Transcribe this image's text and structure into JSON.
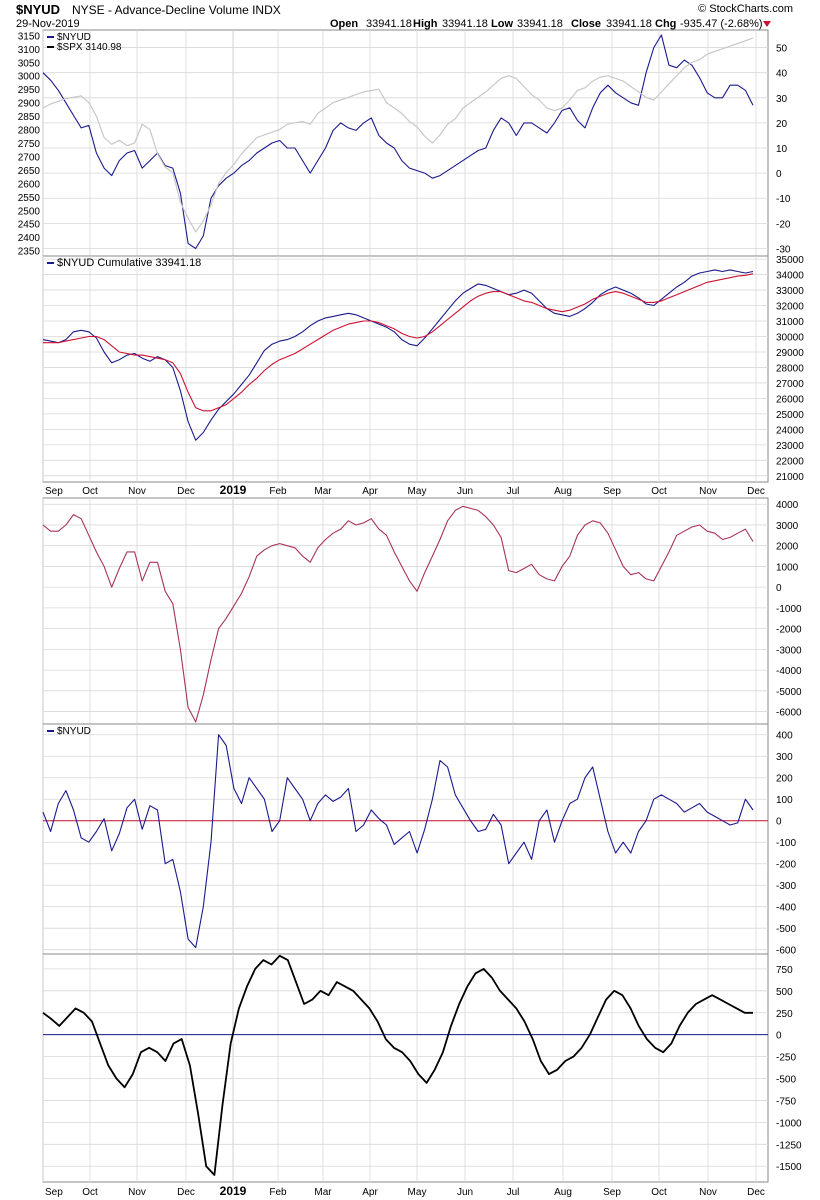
{
  "header": {
    "symbol": "$NYUD",
    "name": "NYSE - Advance-Decline Volume INDX",
    "date": "29-Nov-2019",
    "brand": "© StockCharts.com",
    "open_label": "Open",
    "open": "33941.18",
    "high_label": "High",
    "high": "33941.18",
    "low_label": "Low",
    "low": "33941.18",
    "close_label": "Close",
    "close": "33941.18",
    "chg_label": "Chg",
    "chg": "-935.47 (-2.68%)"
  },
  "colors": {
    "navy": "#1a1a8c",
    "red": "#cc1133",
    "maroon": "#a8325a",
    "gray_line": "#c8c8c8",
    "grid": "#d8d8d8",
    "black": "#000000"
  },
  "chart_data": [
    {
      "type": "line",
      "panel": "price",
      "legend": [
        "$NYUD",
        "$SPX 3140.98"
      ],
      "x_labels": [
        "Sep",
        "Oct",
        "Nov",
        "Dec",
        "2019",
        "Feb",
        "Mar",
        "Apr",
        "May",
        "Jun",
        "Jul",
        "Aug",
        "Sep",
        "Oct",
        "Nov",
        "Dec"
      ],
      "y_left_ticks": [
        2350,
        2400,
        2450,
        2500,
        2550,
        2600,
        2650,
        2700,
        2750,
        2800,
        2850,
        2900,
        2950,
        3000,
        3050,
        3100,
        3150
      ],
      "y_right_ticks": [
        -30,
        -20,
        -10,
        0,
        10,
        20,
        30,
        40,
        50
      ],
      "series": [
        {
          "name": "$NYUD",
          "axis": "right",
          "color": "navy",
          "values": [
            40,
            37,
            33,
            28,
            23,
            18,
            19,
            8,
            2,
            -1,
            5,
            8,
            9,
            2,
            5,
            8,
            3,
            2,
            -8,
            -28,
            -30,
            -25,
            -10,
            -5,
            -2,
            0,
            3,
            5,
            8,
            10,
            12,
            13,
            10,
            10,
            5,
            0,
            5,
            10,
            17,
            20,
            18,
            17,
            20,
            22,
            15,
            12,
            10,
            5,
            2,
            1,
            0,
            -2,
            -1,
            1,
            3,
            5,
            7,
            9,
            10,
            17,
            22,
            20,
            15,
            20,
            20,
            18,
            16,
            20,
            25,
            26,
            21,
            18,
            26,
            32,
            35,
            32,
            30,
            28,
            27,
            40,
            50,
            55,
            43,
            42,
            45,
            43,
            38,
            32,
            30,
            30,
            35,
            35,
            33,
            27
          ]
        },
        {
          "name": "$SPX 3140.98",
          "axis": "left",
          "color": "gray_line",
          "values": [
            2880,
            2895,
            2905,
            2915,
            2920,
            2925,
            2900,
            2850,
            2770,
            2745,
            2760,
            2740,
            2750,
            2820,
            2800,
            2710,
            2660,
            2640,
            2530,
            2470,
            2420,
            2460,
            2520,
            2600,
            2640,
            2670,
            2710,
            2740,
            2770,
            2780,
            2790,
            2800,
            2820,
            2825,
            2830,
            2820,
            2860,
            2880,
            2900,
            2910,
            2920,
            2930,
            2940,
            2945,
            2950,
            2900,
            2880,
            2860,
            2830,
            2810,
            2775,
            2750,
            2780,
            2820,
            2840,
            2880,
            2900,
            2920,
            2940,
            2965,
            2990,
            3000,
            2990,
            2960,
            2930,
            2910,
            2880,
            2870,
            2880,
            2910,
            2945,
            2955,
            2980,
            2995,
            3000,
            2990,
            2980,
            2960,
            2940,
            2920,
            2910,
            2940,
            2970,
            3000,
            3030,
            3050,
            3060,
            3080,
            3090,
            3100,
            3110,
            3120,
            3130,
            3140
          ]
        }
      ]
    },
    {
      "type": "line",
      "panel": "cumulative",
      "legend": [
        "$NYUD Cumulative 33941.18"
      ],
      "y_right_ticks": [
        21000,
        22000,
        23000,
        24000,
        25000,
        26000,
        27000,
        28000,
        29000,
        30000,
        31000,
        32000,
        33000,
        34000,
        35000
      ],
      "series": [
        {
          "name": "$NYUD Cumulative 33941.18",
          "color": "navy",
          "values": [
            29800,
            29700,
            29600,
            29800,
            30300,
            30400,
            30300,
            29900,
            29000,
            28300,
            28500,
            28800,
            28900,
            28600,
            28400,
            28700,
            28500,
            28000,
            26500,
            24500,
            23300,
            23800,
            24600,
            25300,
            25800,
            26300,
            26900,
            27500,
            28300,
            29100,
            29500,
            29700,
            29800,
            30000,
            30300,
            30700,
            31000,
            31200,
            31300,
            31400,
            31500,
            31400,
            31200,
            31000,
            30800,
            30600,
            30300,
            29800,
            29500,
            29400,
            29900,
            30500,
            31100,
            31700,
            32300,
            32800,
            33100,
            33400,
            33300,
            33100,
            32900,
            32700,
            32800,
            33000,
            32800,
            32300,
            31800,
            31500,
            31400,
            31300,
            31500,
            31800,
            32200,
            32700,
            33000,
            33200,
            33000,
            32800,
            32500,
            32100,
            32000,
            32400,
            32800,
            33200,
            33500,
            33900,
            34100,
            34200,
            34300,
            34200,
            34300,
            34200,
            34100,
            34200
          ]
        },
        {
          "name": "Moving Average",
          "color": "red",
          "values": [
            29600,
            29600,
            29600,
            29700,
            29800,
            29900,
            30000,
            30000,
            29800,
            29400,
            29000,
            28900,
            28800,
            28800,
            28700,
            28600,
            28500,
            28300,
            27600,
            26400,
            25400,
            25200,
            25200,
            25400,
            25600,
            26000,
            26400,
            26900,
            27300,
            27800,
            28200,
            28500,
            28700,
            28900,
            29200,
            29500,
            29800,
            30100,
            30400,
            30600,
            30800,
            30900,
            31000,
            31000,
            30900,
            30700,
            30500,
            30200,
            30000,
            29900,
            30000,
            30300,
            30700,
            31100,
            31500,
            31900,
            32300,
            32600,
            32800,
            32900,
            32900,
            32700,
            32500,
            32300,
            32200,
            32000,
            31800,
            31700,
            31600,
            31700,
            31900,
            32100,
            32400,
            32600,
            32800,
            32900,
            32800,
            32600,
            32400,
            32200,
            32200,
            32300,
            32500,
            32700,
            32900,
            33100,
            33300,
            33500,
            33600,
            33700,
            33800,
            33900,
            33950,
            34050
          ]
        }
      ]
    },
    {
      "type": "line",
      "panel": "cumulative-oscillator",
      "y_right_ticks": [
        -6000,
        -5000,
        -4000,
        -3000,
        -2000,
        -1000,
        0,
        1000,
        2000,
        3000,
        4000
      ],
      "series": [
        {
          "name": "Oscillator",
          "color": "maroon",
          "values": [
            3000,
            2700,
            2700,
            3000,
            3500,
            3300,
            2500,
            1700,
            1000,
            0,
            900,
            1700,
            1700,
            300,
            1200,
            1200,
            -200,
            -800,
            -3000,
            -5800,
            -6500,
            -5200,
            -3500,
            -2000,
            -1500,
            -900,
            -300,
            500,
            1500,
            1800,
            2000,
            2100,
            2000,
            1900,
            1500,
            1200,
            1900,
            2300,
            2600,
            2800,
            3200,
            3000,
            3100,
            3300,
            2800,
            2500,
            1700,
            1000,
            300,
            -200,
            700,
            1500,
            2300,
            3200,
            3700,
            3900,
            3800,
            3700,
            3400,
            3000,
            2400,
            800,
            700,
            900,
            1100,
            600,
            400,
            300,
            1000,
            1500,
            2500,
            3000,
            3200,
            3100,
            2600,
            1800,
            1000,
            600,
            700,
            400,
            300,
            1000,
            1700,
            2500,
            2700,
            2900,
            3000,
            2700,
            2600,
            2300,
            2400,
            2600,
            2800,
            2200
          ]
        }
      ]
    },
    {
      "type": "line",
      "panel": "nyud",
      "legend": [
        "$NYUD"
      ],
      "y_right_ticks": [
        -600,
        -500,
        -400,
        -300,
        -200,
        -100,
        0,
        100,
        200,
        300,
        400
      ],
      "reference_line": 0,
      "series": [
        {
          "name": "$NYUD",
          "color": "navy",
          "values": [
            40,
            -50,
            80,
            140,
            50,
            -80,
            -100,
            -50,
            10,
            -140,
            -60,
            60,
            100,
            -40,
            70,
            50,
            -200,
            -180,
            -330,
            -550,
            -590,
            -400,
            -100,
            400,
            350,
            150,
            80,
            200,
            150,
            100,
            -50,
            0,
            200,
            150,
            100,
            0,
            80,
            120,
            90,
            110,
            150,
            -50,
            -20,
            50,
            10,
            -20,
            -110,
            -80,
            -50,
            -150,
            -40,
            100,
            280,
            250,
            120,
            60,
            0,
            -50,
            -40,
            30,
            -20,
            -200,
            -150,
            -100,
            -180,
            0,
            50,
            -100,
            0,
            80,
            100,
            200,
            250,
            100,
            -50,
            -150,
            -100,
            -150,
            -50,
            0,
            100,
            120,
            100,
            80,
            40,
            60,
            80,
            40,
            20,
            0,
            -20,
            -10,
            100,
            50
          ]
        },
        {
          "name": "Zero line",
          "color": "red",
          "values": []
        }
      ]
    },
    {
      "type": "line",
      "panel": "oscillator",
      "y_right_ticks": [
        -1500,
        -1250,
        -1000,
        -750,
        -500,
        -250,
        0,
        250,
        500,
        750
      ],
      "reference_line": 0,
      "series": [
        {
          "name": "Oscillator",
          "color": "black",
          "values": [
            250,
            180,
            100,
            200,
            300,
            250,
            150,
            -100,
            -350,
            -500,
            -600,
            -450,
            -200,
            -150,
            -200,
            -300,
            -100,
            -50,
            -350,
            -900,
            -1500,
            -1600,
            -800,
            -100,
            300,
            550,
            750,
            850,
            800,
            900,
            850,
            600,
            350,
            400,
            500,
            450,
            600,
            550,
            500,
            400,
            300,
            150,
            -50,
            -150,
            -200,
            -300,
            -450,
            -550,
            -400,
            -200,
            100,
            350,
            550,
            700,
            750,
            650,
            500,
            400,
            300,
            150,
            -50,
            -300,
            -450,
            -400,
            -300,
            -250,
            -150,
            0,
            200,
            400,
            500,
            450,
            300,
            100,
            -50,
            -150,
            -200,
            -100,
            100,
            250,
            350,
            400,
            450,
            400,
            350,
            300,
            250,
            250
          ]
        }
      ]
    }
  ]
}
